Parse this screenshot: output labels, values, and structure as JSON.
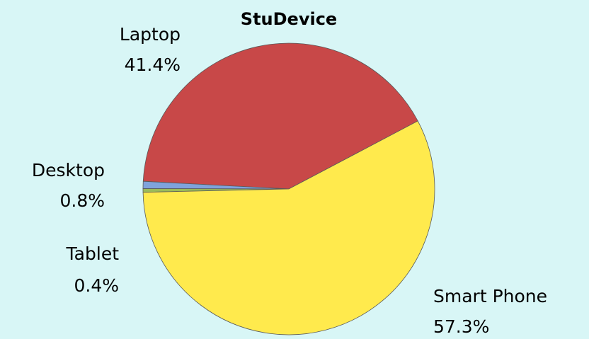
{
  "chart_data": {
    "type": "pie",
    "title": "StuDevice",
    "categories": [
      "Laptop",
      "Desktop",
      "Tablet",
      "Smart Phone"
    ],
    "values": [
      41.4,
      0.8,
      0.4,
      57.3
    ],
    "value_labels": [
      "41.4%",
      "0.8%",
      "0.4%",
      "57.3%"
    ],
    "colors": [
      "#c84848",
      "#7fa3dc",
      "#9bbb59",
      "#ffea4d"
    ]
  }
}
